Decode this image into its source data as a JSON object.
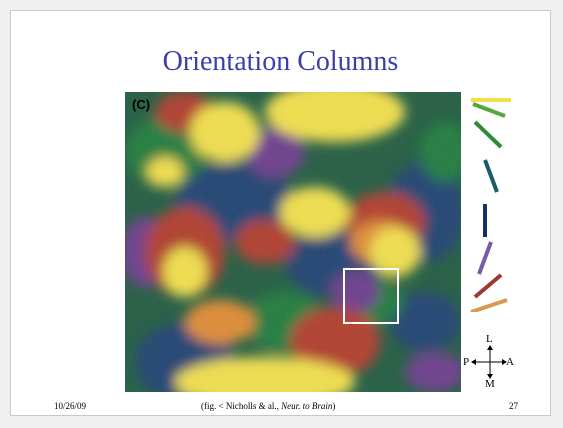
{
  "slide": {
    "title": "Orientation Columns",
    "panel_label": "(C)",
    "footer": {
      "date": "10/26/09",
      "citation_prefix": "(fig. < Nicholls & al., ",
      "citation_source": "Neur. to Brain",
      "citation_suffix": ")",
      "page_number": "27"
    },
    "compass": {
      "top": "L",
      "left": "P",
      "right": "A",
      "bottom": "M"
    },
    "orientation_key": {
      "colors": [
        "#f2e04a",
        "#54a83a",
        "#2f8a3a",
        "#1d5a6a",
        "#16306a",
        "#7a5aa8",
        "#9a3a30",
        "#d89a50"
      ]
    }
  }
}
